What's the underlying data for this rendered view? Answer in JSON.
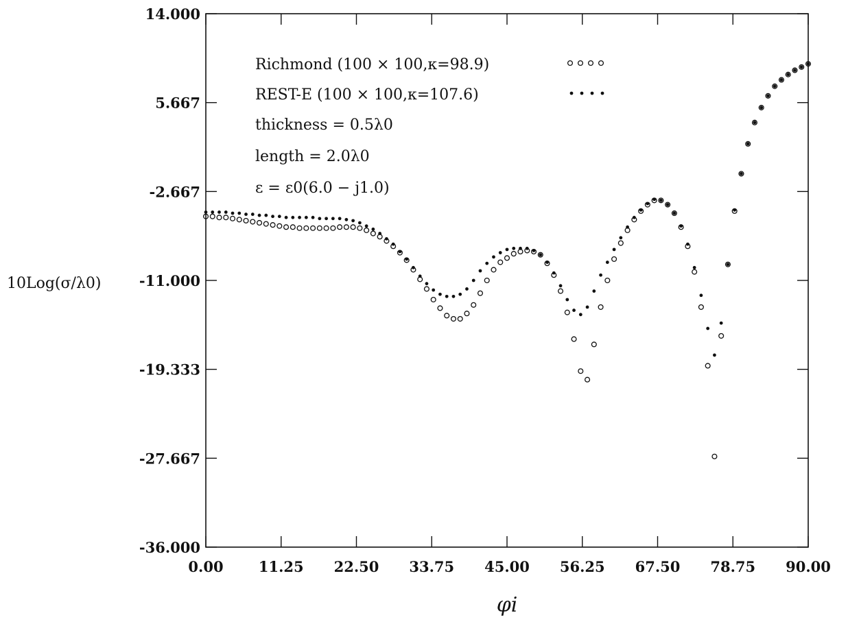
{
  "chart_data": {
    "type": "scatter",
    "title": "",
    "xlabel": "φi",
    "ylabel": "10Log(σ/λ0)",
    "xlim": [
      0,
      90
    ],
    "ylim": [
      -36,
      14
    ],
    "xticks": [
      "0.00",
      "11.25",
      "22.50",
      "33.75",
      "45.00",
      "56.25",
      "67.50",
      "78.75",
      "90.00"
    ],
    "yticks": [
      "14.000",
      "5.667",
      "-2.667",
      "-11.000",
      "-19.333",
      "-27.667",
      "-36.000"
    ],
    "grid": false,
    "legend_position": "top-left",
    "annotations": [
      "thickness = 0.5λ0",
      "length = 2.0λ0",
      "ε = ε0(6.0 − j1.0)"
    ],
    "series": [
      {
        "name": "Richmond (100 × 100,κ=98.9)",
        "marker": "open-circle",
        "x": [
          0,
          1,
          2,
          3,
          4,
          5,
          6,
          7,
          8,
          9,
          10,
          11,
          12,
          13,
          14,
          15,
          16,
          17,
          18,
          19,
          20,
          21,
          22,
          23,
          24,
          25,
          26,
          27,
          28,
          29,
          30,
          31,
          32,
          33,
          34,
          35,
          36,
          37,
          38,
          39,
          40,
          41,
          42,
          43,
          44,
          45,
          46,
          47,
          48,
          49,
          50,
          51,
          52,
          53,
          54,
          55,
          56,
          57,
          58,
          59,
          60,
          61,
          62,
          63,
          64,
          65,
          66,
          67,
          68,
          69,
          70,
          71,
          72,
          73,
          74,
          75,
          76,
          77,
          78,
          79,
          80,
          81,
          82,
          83,
          84,
          85,
          86,
          87,
          88,
          89,
          90
        ],
        "y": [
          -5.0,
          -5.0,
          -5.1,
          -5.1,
          -5.2,
          -5.3,
          -5.4,
          -5.5,
          -5.6,
          -5.7,
          -5.8,
          -5.9,
          -6.0,
          -6.0,
          -6.1,
          -6.1,
          -6.1,
          -6.1,
          -6.1,
          -6.1,
          -6.0,
          -6.0,
          -6.0,
          -6.1,
          -6.3,
          -6.6,
          -6.9,
          -7.3,
          -7.8,
          -8.4,
          -9.1,
          -10.0,
          -10.9,
          -11.8,
          -12.8,
          -13.6,
          -14.3,
          -14.6,
          -14.6,
          -14.1,
          -13.3,
          -12.2,
          -11.0,
          -10.0,
          -9.3,
          -8.9,
          -8.5,
          -8.3,
          -8.2,
          -8.3,
          -8.6,
          -9.4,
          -10.5,
          -12.0,
          -14.0,
          -16.5,
          -19.5,
          -20.3,
          -17.0,
          -13.5,
          -11.0,
          -9.0,
          -7.5,
          -6.3,
          -5.3,
          -4.5,
          -3.9,
          -3.5,
          -3.5,
          -3.9,
          -4.7,
          -6.0,
          -7.8,
          -10.2,
          -13.5,
          -19.0,
          -27.5,
          -16.2,
          -9.5,
          -4.5,
          -1.0,
          1.8,
          3.8,
          5.2,
          6.3,
          7.2,
          7.8,
          8.3,
          8.7,
          9.0,
          9.3
        ]
      },
      {
        "name": "REST-E (100 × 100,κ=107.6)",
        "marker": "filled-dot",
        "x": [
          0,
          1,
          2,
          3,
          4,
          5,
          6,
          7,
          8,
          9,
          10,
          11,
          12,
          13,
          14,
          15,
          16,
          17,
          18,
          19,
          20,
          21,
          22,
          23,
          24,
          25,
          26,
          27,
          28,
          29,
          30,
          31,
          32,
          33,
          34,
          35,
          36,
          37,
          38,
          39,
          40,
          41,
          42,
          43,
          44,
          45,
          46,
          47,
          48,
          49,
          50,
          51,
          52,
          53,
          54,
          55,
          56,
          57,
          58,
          59,
          60,
          61,
          62,
          63,
          64,
          65,
          66,
          67,
          68,
          69,
          70,
          71,
          72,
          73,
          74,
          75,
          76,
          77,
          78,
          79,
          80,
          81,
          82,
          83,
          84,
          85,
          86,
          87,
          88,
          89,
          90
        ],
        "y": [
          -4.6,
          -4.6,
          -4.6,
          -4.6,
          -4.7,
          -4.7,
          -4.8,
          -4.8,
          -4.9,
          -4.9,
          -5.0,
          -5.0,
          -5.1,
          -5.1,
          -5.1,
          -5.1,
          -5.1,
          -5.2,
          -5.2,
          -5.2,
          -5.2,
          -5.3,
          -5.4,
          -5.6,
          -5.9,
          -6.2,
          -6.6,
          -7.1,
          -7.6,
          -8.3,
          -9.0,
          -9.8,
          -10.6,
          -11.3,
          -11.9,
          -12.3,
          -12.5,
          -12.5,
          -12.3,
          -11.8,
          -11.0,
          -10.1,
          -9.4,
          -8.8,
          -8.4,
          -8.1,
          -8.0,
          -8.0,
          -8.0,
          -8.2,
          -8.6,
          -9.3,
          -10.3,
          -11.5,
          -12.8,
          -13.8,
          -14.2,
          -13.5,
          -12.0,
          -10.5,
          -9.3,
          -8.1,
          -7.0,
          -6.0,
          -5.1,
          -4.4,
          -3.8,
          -3.4,
          -3.5,
          -3.9,
          -4.7,
          -5.9,
          -7.6,
          -9.8,
          -12.4,
          -15.5,
          -18.0,
          -15.0,
          -9.5,
          -4.4,
          -1.0,
          1.8,
          3.8,
          5.2,
          6.3,
          7.2,
          7.8,
          8.3,
          8.7,
          9.0,
          9.3
        ]
      }
    ]
  }
}
